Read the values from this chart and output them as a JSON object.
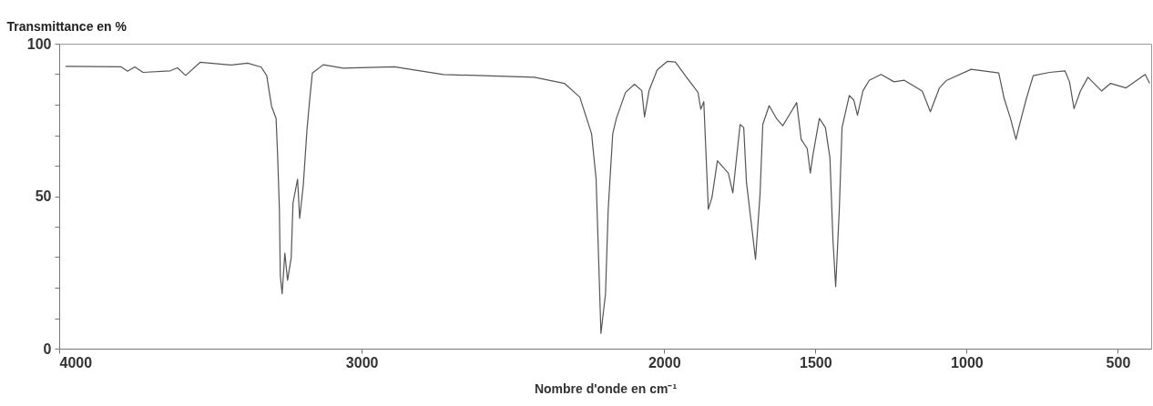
{
  "chart_data": {
    "type": "line",
    "ylabel": "Transmittance en %",
    "xlabel": "Nombre d'onde en cm⁻¹",
    "xlim": [
      4000,
      390
    ],
    "xticks": [
      4000,
      3000,
      2000,
      1500,
      1000,
      500
    ],
    "ylim": [
      0,
      100
    ],
    "yticks": [
      0,
      {
        "value": 10,
        "label": null
      },
      {
        "value": 20,
        "label": null
      },
      {
        "value": 30,
        "label": null
      },
      {
        "value": 40,
        "label": null
      },
      50,
      {
        "value": 60,
        "label": null
      },
      {
        "value": 70,
        "label": null
      },
      {
        "value": 80,
        "label": null
      },
      {
        "value": 90,
        "label": null
      },
      100
    ],
    "grid": false,
    "marker": "none",
    "line_style": "solid",
    "series": [
      {
        "color": "#555555",
        "x": [
          3979,
          3795,
          3774,
          3750,
          3723,
          3633,
          3609,
          3582,
          3534,
          3434,
          3377,
          3332,
          3314,
          3298,
          3283,
          3278,
          3272,
          3269,
          3263,
          3254,
          3245,
          3233,
          3227,
          3212,
          3205,
          3193,
          3181,
          3172,
          3163,
          3127,
          3061,
          2892,
          2730,
          2429,
          2330,
          2279,
          2240,
          2225,
          2209,
          2194,
          2185,
          2170,
          2158,
          2128,
          2098,
          2074,
          2065,
          2050,
          2023,
          1990,
          1963,
          1930,
          1888,
          1879,
          1869,
          1854,
          1842,
          1824,
          1788,
          1773,
          1749,
          1737,
          1728,
          1698,
          1683,
          1674,
          1653,
          1629,
          1608,
          1584,
          1562,
          1547,
          1527,
          1517,
          1508,
          1487,
          1467,
          1452,
          1442,
          1433,
          1421,
          1412,
          1388,
          1373,
          1361,
          1343,
          1322,
          1283,
          1240,
          1206,
          1147,
          1120,
          1090,
          1066,
          985,
          894,
          876,
          855,
          837,
          825,
          804,
          780,
          726,
          675,
          660,
          645,
          624,
          599,
          554,
          524,
          473,
          410,
          395
        ],
        "values": [
          92.6,
          92.4,
          91.0,
          92.4,
          90.6,
          91.1,
          92.1,
          89.6,
          93.9,
          93.0,
          93.6,
          92.3,
          89.5,
          79.5,
          75.5,
          63.6,
          45.7,
          23.9,
          18.0,
          31.3,
          22.4,
          29.8,
          47.8,
          55.6,
          42.7,
          53.7,
          71.6,
          81.5,
          90.4,
          93.1,
          92.0,
          92.4,
          89.9,
          89.0,
          87.0,
          82.5,
          70.5,
          55.6,
          5,
          17.9,
          45.7,
          70.5,
          75.5,
          84.0,
          86.7,
          84.6,
          76.0,
          84.6,
          91.4,
          94.2,
          94.0,
          89.5,
          84.0,
          78.5,
          81.0,
          45.7,
          49.6,
          61.6,
          57.6,
          51.1,
          73.5,
          72.5,
          54.6,
          29.3,
          50.7,
          73.5,
          79.7,
          75.5,
          73.1,
          77.0,
          80.7,
          68.6,
          65.6,
          57.6,
          63.6,
          75.5,
          72.5,
          62.6,
          35.7,
          20.3,
          45.7,
          72.5,
          83.0,
          81.5,
          76.5,
          84.5,
          88.0,
          89.9,
          87.5,
          88.0,
          84.5,
          77.7,
          85.5,
          88.0,
          91.6,
          90.4,
          82.0,
          75.5,
          68.6,
          73.5,
          81.5,
          89.5,
          90.6,
          91.1,
          87.5,
          78.7,
          84.5,
          89.0,
          84.5,
          87.0,
          85.5,
          89.9,
          87.0
        ]
      }
    ]
  }
}
